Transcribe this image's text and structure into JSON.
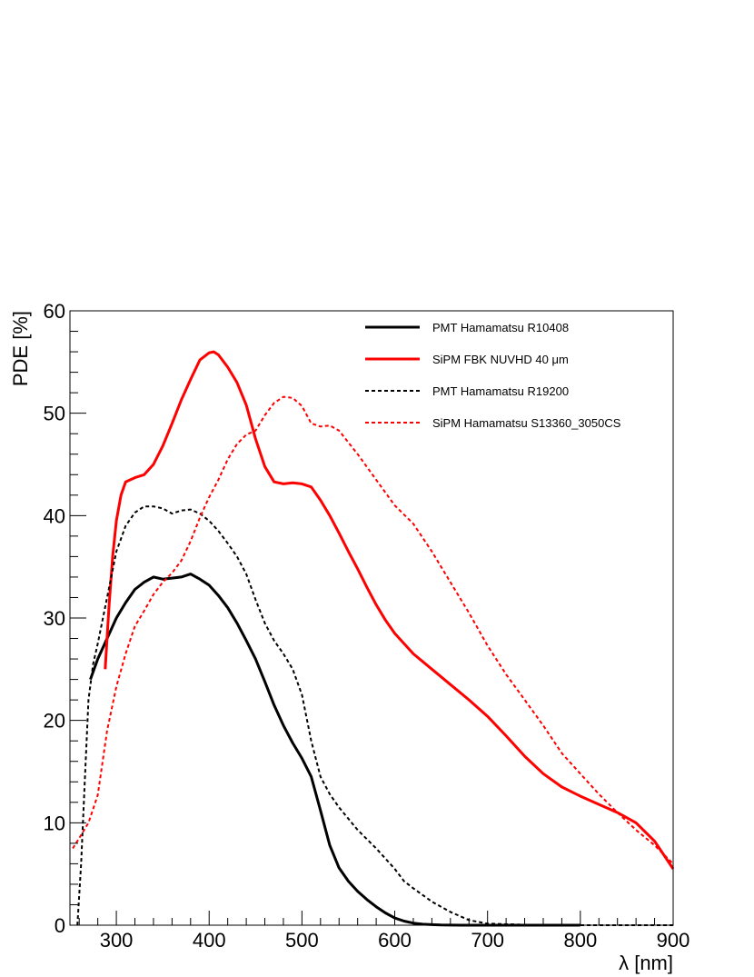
{
  "chart_data": {
    "type": "line",
    "title": "",
    "xlabel": "λ [nm]",
    "ylabel": "PDE [%]",
    "xlim": [
      250,
      900
    ],
    "ylim": [
      0,
      60
    ],
    "xticks": [
      300,
      400,
      500,
      600,
      700,
      800,
      900
    ],
    "yticks": [
      0,
      10,
      20,
      30,
      40,
      50,
      60
    ],
    "grid": false,
    "legend_position": "top-right",
    "series": [
      {
        "name": "PMT Hamamatsu R10408",
        "color": "#000000",
        "style": "solid",
        "x": [
          272,
          280,
          290,
          300,
          310,
          320,
          330,
          340,
          350,
          360,
          370,
          380,
          390,
          400,
          410,
          420,
          430,
          440,
          450,
          460,
          470,
          480,
          490,
          500,
          510,
          520,
          530,
          540,
          550,
          560,
          570,
          580,
          590,
          600,
          610,
          620,
          630,
          640,
          650,
          660,
          680,
          700,
          750,
          800
        ],
        "y": [
          24,
          26,
          28,
          30,
          31.5,
          32.8,
          33.5,
          34,
          33.8,
          33.9,
          34,
          34.3,
          33.8,
          33.2,
          32.2,
          31,
          29.5,
          27.8,
          26,
          23.8,
          21.5,
          19.5,
          17.8,
          16.3,
          14.5,
          11.2,
          7.8,
          5.6,
          4.3,
          3.3,
          2.5,
          1.8,
          1.2,
          0.7,
          0.4,
          0.2,
          0.1,
          0.05,
          0.02,
          0.01,
          0,
          0,
          0,
          0
        ]
      },
      {
        "name": "SiPM FBK NUVHD 40 μm",
        "color": "#ff0000",
        "style": "solid",
        "x": [
          288,
          292,
          296,
          300,
          305,
          310,
          320,
          330,
          340,
          350,
          360,
          370,
          380,
          390,
          400,
          405,
          410,
          420,
          430,
          440,
          450,
          460,
          470,
          480,
          490,
          500,
          510,
          520,
          530,
          540,
          550,
          560,
          570,
          580,
          590,
          600,
          620,
          640,
          660,
          680,
          700,
          720,
          740,
          760,
          780,
          800,
          820,
          840,
          860,
          880,
          900
        ],
        "y": [
          25,
          31,
          36,
          39.5,
          42,
          43.3,
          43.7,
          44,
          45,
          46.8,
          49,
          51.3,
          53.3,
          55.2,
          55.9,
          56,
          55.7,
          54.5,
          53,
          50.8,
          47.5,
          44.8,
          43.3,
          43.1,
          43.2,
          43.1,
          42.8,
          41.5,
          40,
          38.3,
          36.5,
          34.8,
          33,
          31.3,
          29.8,
          28.5,
          26.5,
          25,
          23.5,
          22,
          20.4,
          18.5,
          16.5,
          14.8,
          13.5,
          12.6,
          11.8,
          11,
          10,
          8.2,
          5.5
        ]
      },
      {
        "name": "PMT Hamamatsu R19200",
        "color": "#000000",
        "style": "dashed",
        "x": [
          258,
          262,
          266,
          270,
          275,
          280,
          290,
          300,
          310,
          320,
          330,
          340,
          350,
          360,
          370,
          380,
          390,
          400,
          410,
          420,
          430,
          440,
          450,
          460,
          470,
          480,
          490,
          500,
          510,
          520,
          530,
          540,
          560,
          580,
          600,
          610,
          620,
          640,
          660,
          680,
          700,
          750,
          800,
          900
        ],
        "y": [
          0,
          6,
          14,
          22,
          25.5,
          27.5,
          32,
          36.5,
          39,
          40.3,
          40.9,
          40.9,
          40.7,
          40.2,
          40.5,
          40.6,
          40.2,
          39.5,
          38.5,
          37.3,
          36,
          34.3,
          31.8,
          29.5,
          27.8,
          26.5,
          25,
          22.5,
          18,
          14.5,
          12.8,
          11.5,
          9.3,
          7.5,
          5.5,
          4.3,
          3.6,
          2.3,
          1.3,
          0.5,
          0.15,
          0.02,
          0,
          0
        ]
      },
      {
        "name": "SiPM Hamamatsu S13360_3050CS",
        "color": "#ff0000",
        "style": "dashed",
        "x": [
          253,
          260,
          270,
          280,
          290,
          300,
          310,
          320,
          330,
          340,
          350,
          360,
          370,
          380,
          390,
          400,
          410,
          420,
          430,
          440,
          450,
          460,
          470,
          480,
          490,
          500,
          510,
          520,
          530,
          540,
          560,
          580,
          600,
          620,
          640,
          660,
          680,
          700,
          720,
          740,
          760,
          780,
          800,
          820,
          840,
          860,
          880,
          900
        ],
        "y": [
          7.5,
          8.5,
          10,
          12.7,
          19,
          23.3,
          26.5,
          29.2,
          30.7,
          32.3,
          33.5,
          34.4,
          35.6,
          37.5,
          39.8,
          41.8,
          43.5,
          45.5,
          47,
          47.9,
          48.3,
          49.8,
          51,
          51.6,
          51.5,
          50.7,
          49,
          48.7,
          48.8,
          48.3,
          46,
          43.5,
          41,
          39.2,
          36.5,
          33.5,
          30.5,
          27.3,
          24.5,
          22,
          19.5,
          16.8,
          14.8,
          12.8,
          11,
          9.3,
          7.8,
          6
        ]
      }
    ]
  }
}
